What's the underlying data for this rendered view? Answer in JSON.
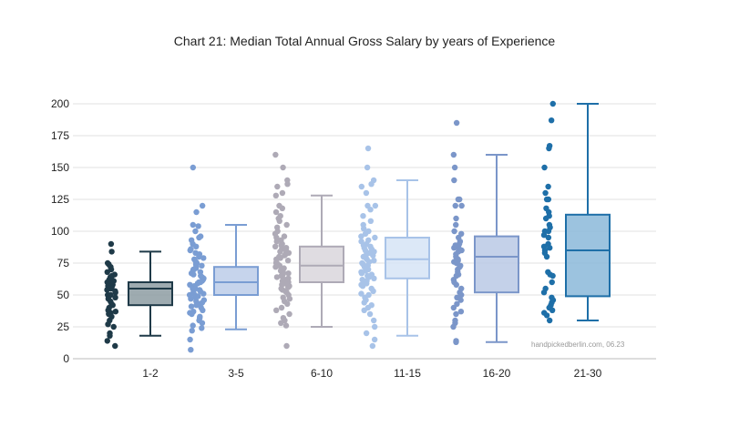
{
  "chart_data": {
    "type": "box",
    "title": "Chart 21: Median Total Annual Gross Salary by years of Experience",
    "xlabel": "",
    "ylabel": "",
    "ylim": [
      0,
      200
    ],
    "yticks": [
      0,
      25,
      50,
      75,
      100,
      125,
      150,
      175,
      200
    ],
    "grid": true,
    "legend": "none",
    "annotation": "handpickedberlin.com, 06.23",
    "categories": [
      "1-2",
      "3-5",
      "6-10",
      "11-15",
      "16-20",
      "21-30"
    ],
    "series": [
      {
        "category": "1-2",
        "color": "#1f3a48",
        "box_fill": "#8d9ca2",
        "min": 18,
        "q1": 42,
        "median": 55,
        "q3": 60,
        "max": 84,
        "points": [
          90,
          84,
          75,
          74,
          72,
          70,
          68,
          66,
          65,
          64,
          62,
          61,
          60,
          60,
          59,
          58,
          58,
          57,
          56,
          55,
          55,
          54,
          53,
          52,
          50,
          50,
          48,
          47,
          45,
          43,
          42,
          40,
          38,
          37,
          36,
          35,
          33,
          30,
          27,
          25,
          20,
          18,
          14,
          10
        ]
      },
      {
        "category": "3-5",
        "color": "#7a9dd3",
        "box_fill": "#bccde9",
        "min": 23,
        "q1": 50,
        "median": 60,
        "q3": 72,
        "max": 105,
        "points": [
          150,
          120,
          115,
          105,
          104,
          100,
          96,
          95,
          93,
          90,
          88,
          86,
          85,
          83,
          82,
          80,
          79,
          78,
          76,
          75,
          74,
          73,
          72,
          71,
          70,
          69,
          68,
          67,
          66,
          65,
          64,
          63,
          62,
          61,
          60,
          60,
          59,
          58,
          57,
          56,
          55,
          55,
          54,
          53,
          52,
          51,
          50,
          50,
          49,
          48,
          47,
          46,
          45,
          44,
          43,
          42,
          41,
          40,
          38,
          37,
          36,
          35,
          33,
          32,
          30,
          28,
          26,
          24,
          22,
          15,
          7
        ]
      },
      {
        "category": "6-10",
        "color": "#aeaab6",
        "box_fill": "#d9d6dc",
        "min": 25,
        "q1": 60,
        "median": 73,
        "q3": 88,
        "max": 128,
        "points": [
          160,
          150,
          140,
          137,
          135,
          130,
          128,
          120,
          118,
          115,
          112,
          110,
          108,
          105,
          103,
          100,
          98,
          96,
          95,
          93,
          92,
          90,
          89,
          88,
          87,
          86,
          85,
          84,
          83,
          82,
          81,
          80,
          79,
          78,
          77,
          76,
          75,
          74,
          73,
          72,
          71,
          70,
          69,
          68,
          67,
          66,
          65,
          64,
          63,
          62,
          61,
          60,
          59,
          58,
          57,
          56,
          55,
          54,
          53,
          52,
          50,
          48,
          47,
          45,
          43,
          40,
          38,
          35,
          32,
          30,
          28,
          26,
          10
        ]
      },
      {
        "category": "11-15",
        "color": "#a8c3e8",
        "box_fill": "#d6e4f6",
        "min": 18,
        "q1": 63,
        "median": 78,
        "q3": 95,
        "max": 140,
        "points": [
          165,
          150,
          140,
          137,
          135,
          130,
          120,
          120,
          117,
          112,
          108,
          105,
          102,
          100,
          98,
          96,
          95,
          93,
          92,
          90,
          89,
          88,
          87,
          86,
          85,
          84,
          83,
          82,
          81,
          80,
          79,
          78,
          77,
          76,
          75,
          74,
          73,
          72,
          71,
          70,
          69,
          68,
          67,
          66,
          65,
          64,
          63,
          62,
          61,
          60,
          59,
          58,
          57,
          55,
          53,
          51,
          50,
          48,
          46,
          44,
          42,
          40,
          38,
          35,
          30,
          25,
          20,
          15,
          10
        ]
      },
      {
        "category": "16-20",
        "color": "#7b96c9",
        "box_fill": "#bac9e5",
        "min": 13,
        "q1": 52,
        "median": 80,
        "q3": 96,
        "max": 160,
        "points": [
          185,
          160,
          150,
          140,
          125,
          125,
          120,
          120,
          110,
          105,
          100,
          98,
          95,
          92,
          90,
          89,
          88,
          87,
          86,
          85,
          84,
          82,
          80,
          78,
          77,
          76,
          75,
          73,
          72,
          70,
          68,
          66,
          65,
          62,
          60,
          58,
          55,
          52,
          50,
          48,
          46,
          43,
          40,
          37,
          35,
          30,
          28,
          25,
          14,
          13
        ]
      },
      {
        "category": "21-30",
        "color": "#1e6fa8",
        "box_fill": "#8bb8d9",
        "min": 30,
        "q1": 49,
        "median": 85,
        "q3": 113,
        "max": 200,
        "points": [
          200,
          187,
          167,
          165,
          150,
          135,
          130,
          125,
          125,
          118,
          115,
          112,
          110,
          105,
          103,
          100,
          100,
          97,
          95,
          90,
          88,
          87,
          85,
          83,
          80,
          68,
          66,
          65,
          60,
          55,
          52,
          48,
          46,
          44,
          42,
          40,
          38,
          36,
          34,
          30
        ]
      }
    ]
  }
}
